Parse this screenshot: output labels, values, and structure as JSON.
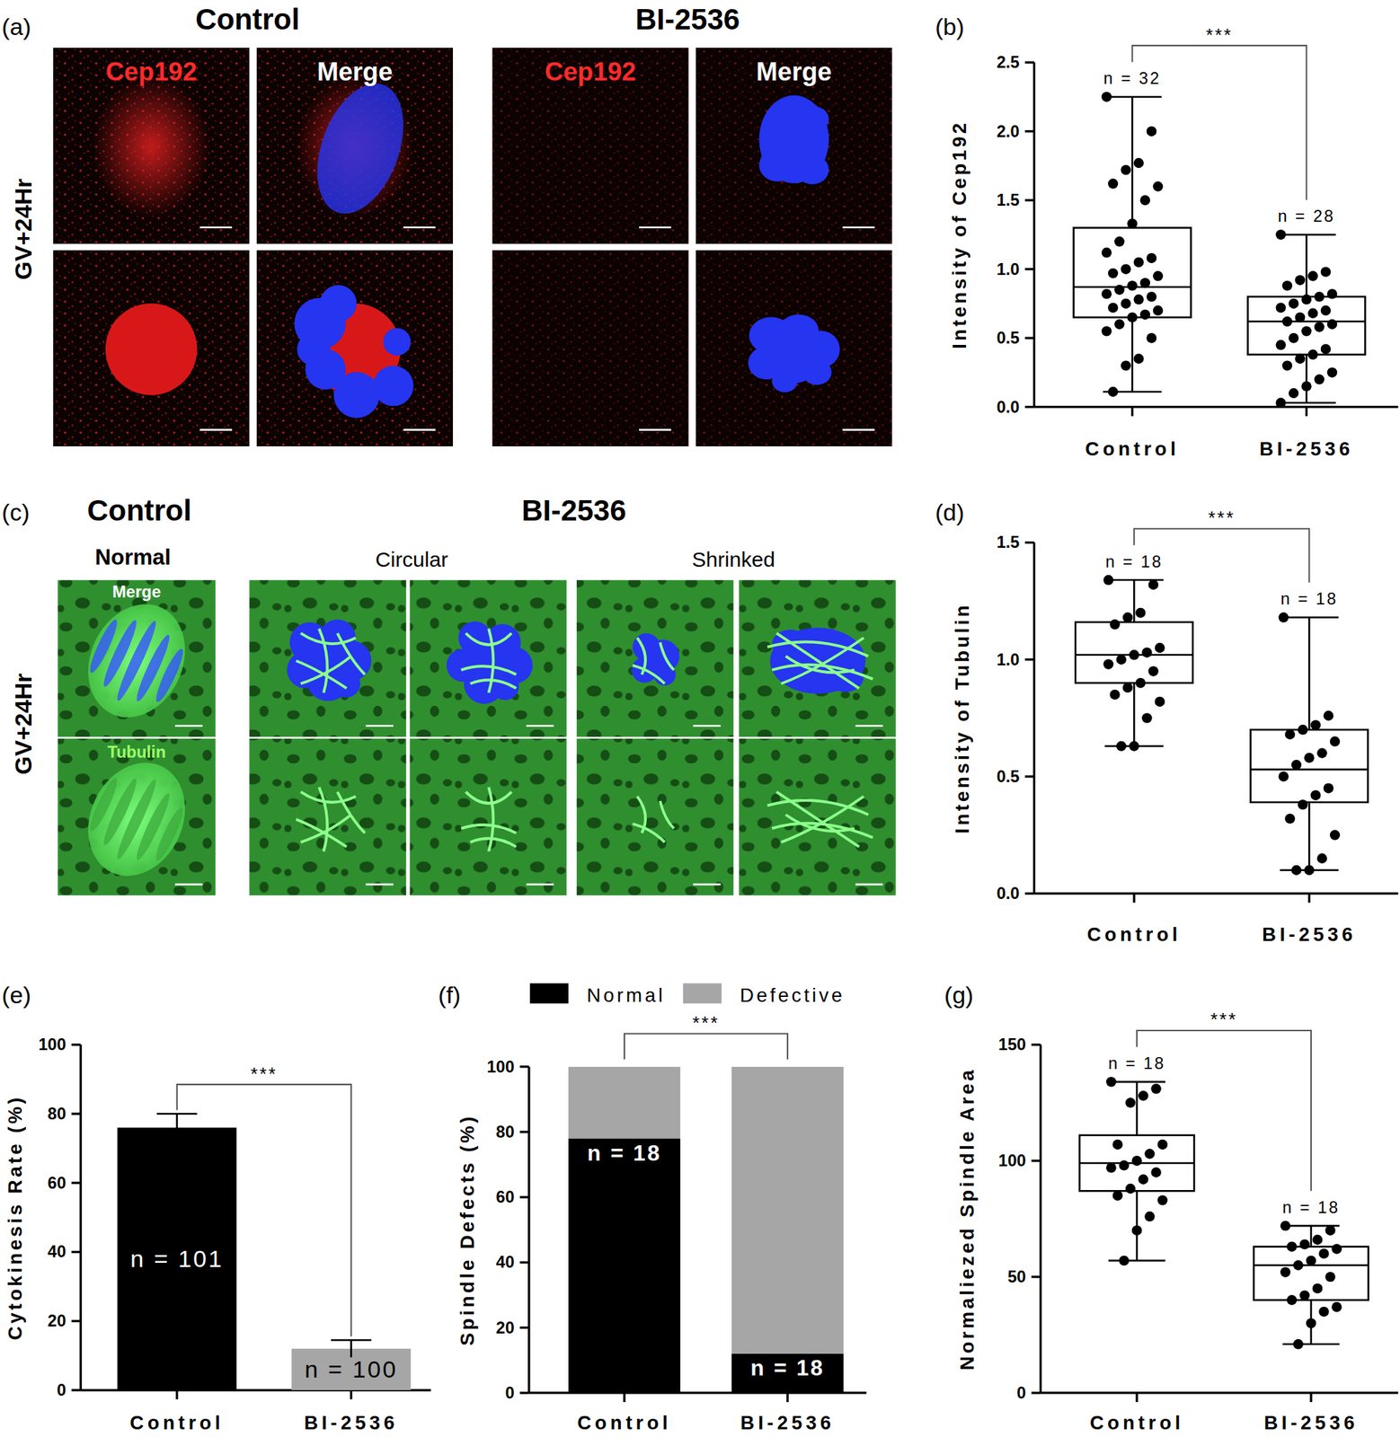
{
  "figure": {
    "panel_a": {
      "label": "(a)",
      "row_label": "GV+24Hr",
      "groups": [
        {
          "title": "Control",
          "channels": [
            "Cep192",
            "Merge"
          ]
        },
        {
          "title": "BI-2536",
          "channels": [
            "Cep192",
            "Merge"
          ]
        }
      ]
    },
    "panel_c": {
      "label": "(c)",
      "row_label": "GV+24Hr",
      "groups": [
        {
          "title": "Control",
          "columns": [
            "Normal"
          ]
        },
        {
          "title": "BI-2536",
          "columns": [
            "Circular",
            "Shrinked"
          ]
        }
      ],
      "channels": [
        "Merge",
        "Tubulin"
      ]
    }
  },
  "chart_data": [
    {
      "panel_label": "(b)",
      "type": "box",
      "y_label": "Intensity of Cep192",
      "categories": [
        "Control",
        "BI-2536"
      ],
      "ylim": [
        0,
        2.5
      ],
      "yticks": [
        {
          "value": 0,
          "label": "0.0"
        },
        0.5,
        {
          "value": 1,
          "label": "1.0"
        },
        1.5,
        {
          "value": 2,
          "label": "2.0"
        },
        2.5
      ],
      "boxes": [
        {
          "min": 0.11,
          "q1": 0.65,
          "median": 0.87,
          "q3": 1.3,
          "max": 2.25
        },
        {
          "min": 0.03,
          "q1": 0.38,
          "median": 0.62,
          "q3": 0.8,
          "max": 1.25
        }
      ],
      "points": [
        [
          2.25,
          2.0,
          1.77,
          1.72,
          1.62,
          1.6,
          1.5,
          1.33,
          1.2,
          1.12,
          1.08,
          1.05,
          1.0,
          0.97,
          0.95,
          0.9,
          0.88,
          0.85,
          0.82,
          0.8,
          0.78,
          0.75,
          0.72,
          0.7,
          0.67,
          0.65,
          0.6,
          0.55,
          0.5,
          0.35,
          0.3,
          0.11
        ],
        [
          1.25,
          0.98,
          0.95,
          0.92,
          0.88,
          0.82,
          0.8,
          0.78,
          0.75,
          0.72,
          0.7,
          0.68,
          0.65,
          0.62,
          0.6,
          0.58,
          0.55,
          0.5,
          0.45,
          0.42,
          0.38,
          0.35,
          0.3,
          0.25,
          0.2,
          0.15,
          0.1,
          0.03
        ]
      ],
      "n_labels": [
        "n = 32",
        "n = 28"
      ],
      "significance": "***"
    },
    {
      "panel_label": "(d)",
      "type": "box",
      "y_label": "Intensity of Tubulin",
      "categories": [
        "Control",
        "BI-2536"
      ],
      "ylim": [
        0,
        1.5
      ],
      "yticks": [
        {
          "value": 0,
          "label": "0.0"
        },
        0.5,
        {
          "value": 1,
          "label": "1.0"
        },
        1.5
      ],
      "boxes": [
        {
          "min": 0.63,
          "q1": 0.9,
          "median": 1.02,
          "q3": 1.16,
          "max": 1.34
        },
        {
          "min": 0.1,
          "q1": 0.39,
          "median": 0.53,
          "q3": 0.7,
          "max": 1.18
        }
      ],
      "points": [
        [
          1.34,
          1.32,
          1.2,
          1.18,
          1.15,
          1.05,
          1.03,
          1.02,
          1.0,
          0.98,
          0.95,
          0.9,
          0.88,
          0.85,
          0.82,
          0.75,
          0.63,
          0.63
        ],
        [
          1.18,
          0.76,
          0.72,
          0.7,
          0.68,
          0.65,
          0.6,
          0.58,
          0.55,
          0.5,
          0.45,
          0.42,
          0.38,
          0.32,
          0.25,
          0.15,
          0.1,
          0.1
        ]
      ],
      "n_labels": [
        "n = 18",
        "n = 18"
      ],
      "significance": "***"
    },
    {
      "panel_label": "(e)",
      "type": "bar",
      "y_label": "Cytokinesis Rate (%)",
      "categories": [
        "Control",
        "BI-2536"
      ],
      "values": [
        76,
        12
      ],
      "errors": [
        4,
        2.5
      ],
      "colors": [
        "#000000",
        "#a6a6a6"
      ],
      "ylim": [
        0,
        100
      ],
      "yticks": [
        0,
        20,
        40,
        60,
        80,
        100
      ],
      "n_labels": [
        "n = 101",
        "n = 100"
      ],
      "significance": "***"
    },
    {
      "panel_label": "(f)",
      "type": "bar",
      "stacked": true,
      "legend": "top",
      "y_label": "Spindle Defects (%)",
      "categories": [
        "Control",
        "BI-2536"
      ],
      "series": [
        {
          "name": "Normal",
          "color": "#000000",
          "values": [
            78,
            12
          ]
        },
        {
          "name": "Defective",
          "color": "#a6a6a6",
          "values": [
            22,
            88
          ]
        }
      ],
      "ylim": [
        0,
        100
      ],
      "yticks": [
        0,
        20,
        40,
        60,
        80,
        100
      ],
      "n_labels": [
        "n = 18",
        "n = 18"
      ],
      "significance": "***"
    },
    {
      "panel_label": "(g)",
      "type": "box",
      "y_label": "Normaliezed Spindle Area",
      "categories": [
        "Control",
        "BI-2536"
      ],
      "ylim": [
        0,
        150
      ],
      "yticks": [
        0,
        50,
        100,
        150
      ],
      "boxes": [
        {
          "min": 57,
          "q1": 87,
          "median": 99,
          "q3": 111,
          "max": 134
        },
        {
          "min": 21,
          "q1": 40,
          "median": 55,
          "q3": 63,
          "max": 72
        }
      ],
      "points": [
        [
          134,
          131,
          128,
          125,
          107,
          107,
          103,
          100,
          98,
          97,
          95,
          92,
          88,
          85,
          83,
          76,
          70,
          57
        ],
        [
          72,
          70,
          66,
          64,
          63,
          62,
          60,
          57,
          55,
          52,
          50,
          45,
          42,
          40,
          37,
          35,
          30,
          21
        ]
      ],
      "n_labels": [
        "n = 18",
        "n = 18"
      ],
      "significance": "***"
    }
  ]
}
